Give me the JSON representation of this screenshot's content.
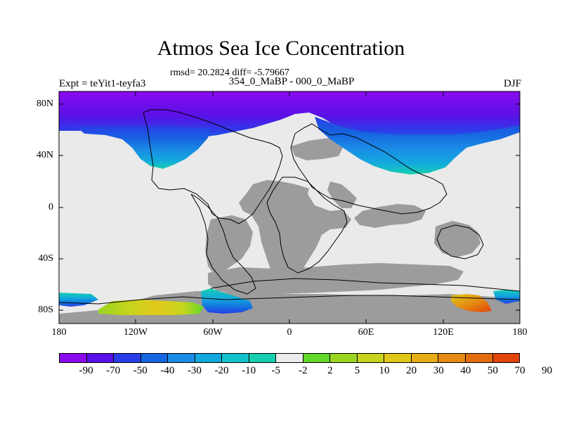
{
  "title": "Atmos Sea Ice Concentration",
  "rmsd_line": "rmsd= 20.2824 diff= -5.79667",
  "subtitle": "354_0_MaBP - 000_0_MaBP",
  "experiment": "Expt = teYit1-teyfa3",
  "season": "DJF",
  "y_axis": {
    "ticks": [
      "80N",
      "40N",
      "0",
      "40S",
      "80S"
    ],
    "values": [
      80,
      40,
      0,
      -40,
      -80
    ]
  },
  "x_axis": {
    "ticks": [
      "180",
      "120W",
      "60W",
      "0",
      "60E",
      "120E",
      "180"
    ],
    "values": [
      -180,
      -120,
      -60,
      0,
      60,
      120,
      180
    ]
  },
  "colorbar": {
    "labels": [
      "-90",
      "-70",
      "-50",
      "-40",
      "-30",
      "-20",
      "-10",
      "-5",
      "-2",
      "2",
      "5",
      "10",
      "20",
      "30",
      "40",
      "50",
      "70",
      "90"
    ],
    "colors": [
      "#8a0bf0",
      "#5a10e6",
      "#2a3ee8",
      "#1666e0",
      "#1a8ce6",
      "#13a9dd",
      "#12c2cc",
      "#17cfb0",
      "#eaeaea",
      "#62d82a",
      "#9ad522",
      "#c6d41c",
      "#e0c81a",
      "#e7ad17",
      "#e48c12",
      "#e36d0e",
      "#e2450a"
    ]
  },
  "colors": {
    "land": "#9c9c9c",
    "neutral_ocean": "#eaeaea"
  },
  "chart_data": {
    "type": "map",
    "projection": "cylindrical-equidistant",
    "variable": "sea ice concentration difference",
    "lon_range": [
      -180,
      180
    ],
    "lat_range": [
      -90,
      90
    ],
    "features": [
      {
        "name": "arctic-ice-loss-band",
        "lat_range": [
          62,
          90
        ],
        "value_min": -90,
        "value_max": -5
      },
      {
        "name": "north-pacific-ice-loss",
        "lon_range": [
          -160,
          -100
        ],
        "lat_range": [
          28,
          62
        ],
        "value_min": -50,
        "value_max": -5
      },
      {
        "name": "east-eurasia-ice-loss",
        "lon_range": [
          70,
          160
        ],
        "lat_range": [
          28,
          62
        ],
        "value_min": -50,
        "value_max": -5
      },
      {
        "name": "antarctic-ice-gain",
        "lon_range": [
          -150,
          -40
        ],
        "lat_range": [
          -86,
          -74
        ],
        "value_min": 5,
        "value_max": 40
      },
      {
        "name": "antarctic-ice-loss",
        "lon_range": [
          -60,
          -10
        ],
        "lat_range": [
          -86,
          -74
        ],
        "value_min": -50,
        "value_max": -5
      },
      {
        "name": "east-antarctic-ice-gain",
        "lon_range": [
          120,
          160
        ],
        "lat_range": [
          -84,
          -74
        ],
        "value_min": 10,
        "value_max": 70
      }
    ]
  }
}
